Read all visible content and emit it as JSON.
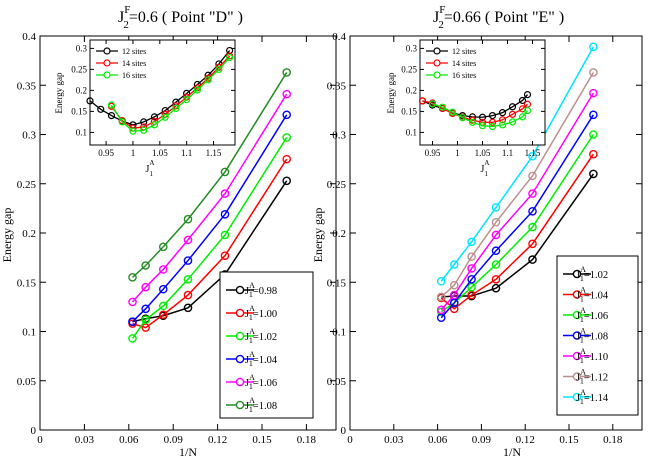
{
  "chart_data": [
    {
      "type": "line",
      "panel": "left",
      "title_main": "J",
      "title_sub": "2",
      "title_sup": "F",
      "title_rest": "=0.6    ( Point  \"D\" )",
      "xlabel": "1/N",
      "ylabel": "Energy gap",
      "xlim": [
        0,
        0.2
      ],
      "ylim": [
        0,
        0.4
      ],
      "xticks": [
        "0",
        "0.03",
        "0.06",
        "0.09",
        "0.12",
        "0.15",
        "0.18"
      ],
      "yticks": [
        "0",
        "0.05",
        "0.1",
        "0.15",
        "0.2",
        "0.25",
        "0.3",
        "0.35",
        "0.4"
      ],
      "x": [
        0.0625,
        0.0714,
        0.0833,
        0.1,
        0.125,
        0.1667
      ],
      "legend_prefix": "J",
      "legend_sub": "1",
      "legend_sup": "A",
      "series": [
        {
          "name": "=0.98",
          "color": "#000000",
          "values": [
            0.11,
            0.113,
            0.116,
            0.124,
            0.158,
            0.253
          ]
        },
        {
          "name": "=1.00",
          "color": "#ff0000",
          "values": [
            0.108,
            0.104,
            0.117,
            0.137,
            0.177,
            0.275
          ]
        },
        {
          "name": "=1.02",
          "color": "#00ee00",
          "values": [
            0.093,
            0.112,
            0.126,
            0.153,
            0.198,
            0.297
          ]
        },
        {
          "name": "=1.04",
          "color": "#0000ff",
          "values": [
            0.11,
            0.123,
            0.143,
            0.172,
            0.219,
            0.32
          ]
        },
        {
          "name": "=1.06",
          "color": "#ff00ff",
          "values": [
            0.13,
            0.145,
            0.163,
            0.193,
            0.24,
            0.341
          ]
        },
        {
          "name": "=1.08",
          "color": "#228b22",
          "values": [
            0.155,
            0.167,
            0.186,
            0.214,
            0.262,
            0.363
          ]
        }
      ],
      "inset": {
        "xlabel_main": "J",
        "xlabel_sub": "1",
        "xlabel_sup": "A",
        "ylabel": "Energy gap",
        "xlim": [
          0.92,
          1.19
        ],
        "ylim": [
          0.07,
          0.32
        ],
        "xticks": [
          "0.95",
          "1",
          "1.05",
          "1.1",
          "1.15"
        ],
        "yticks": [
          "0.1",
          "0.15",
          "0.2",
          "0.25",
          "0.3"
        ],
        "series": [
          {
            "name": "12 sites",
            "color": "#000000",
            "x": [
              0.92,
              0.94,
              0.96,
              0.98,
              1.0,
              1.02,
              1.04,
              1.06,
              1.08,
              1.1,
              1.12,
              1.14,
              1.16,
              1.18
            ],
            "values": [
              0.175,
              0.155,
              0.14,
              0.127,
              0.118,
              0.125,
              0.137,
              0.152,
              0.172,
              0.193,
              0.214,
              0.236,
              0.263,
              0.295
            ]
          },
          {
            "name": "14 sites",
            "color": "#ff0000",
            "x": [
              0.96,
              0.98,
              1.0,
              1.02,
              1.04,
              1.06,
              1.08,
              1.1,
              1.12,
              1.14,
              1.16,
              1.18
            ],
            "values": [
              0.162,
              0.128,
              0.11,
              0.113,
              0.126,
              0.143,
              0.163,
              0.184,
              0.206,
              0.229,
              0.255,
              0.282
            ]
          },
          {
            "name": "16 sites",
            "color": "#00ee00",
            "x": [
              0.96,
              0.98,
              1.0,
              1.02,
              1.04,
              1.06,
              1.08,
              1.1,
              1.12,
              1.14,
              1.16,
              1.18
            ],
            "values": [
              0.165,
              0.125,
              0.103,
              0.105,
              0.118,
              0.136,
              0.157,
              0.178,
              0.201,
              0.225,
              0.25,
              0.278
            ]
          }
        ]
      }
    },
    {
      "type": "line",
      "panel": "right",
      "title_main": "J",
      "title_sub": "2",
      "title_sup": "F",
      "title_rest": "=0.66    ( Point  \"E\" )",
      "xlabel": "1/N",
      "ylabel": "Energy gap",
      "xlim": [
        0,
        0.2
      ],
      "ylim": [
        0,
        0.4
      ],
      "xticks": [
        "0",
        "0.03",
        "0.06",
        "0.09",
        "0.12",
        "0.15",
        "0.18"
      ],
      "yticks": [
        "0",
        "0.05",
        "0.1",
        "0.15",
        "0.2",
        "0.25",
        "0.3",
        "0.35",
        "0.4"
      ],
      "x": [
        0.0625,
        0.0714,
        0.0833,
        0.1,
        0.125,
        0.1667
      ],
      "legend_prefix": "J",
      "legend_sub": "1",
      "legend_sup": "A",
      "series": [
        {
          "name": "=1.02",
          "color": "#000000",
          "values": [
            0.135,
            0.136,
            0.136,
            0.144,
            0.173,
            0.26
          ]
        },
        {
          "name": "=1.04",
          "color": "#ff0000",
          "values": [
            0.134,
            0.123,
            0.137,
            0.153,
            0.189,
            0.28
          ]
        },
        {
          "name": "=1.06",
          "color": "#00ee00",
          "values": [
            0.12,
            0.129,
            0.145,
            0.168,
            0.206,
            0.3
          ]
        },
        {
          "name": "=1.08",
          "color": "#0000ff",
          "values": [
            0.114,
            0.129,
            0.153,
            0.182,
            0.222,
            0.32
          ]
        },
        {
          "name": "=1.10",
          "color": "#ff00ff",
          "values": [
            0.122,
            0.137,
            0.164,
            0.198,
            0.24,
            0.342
          ]
        },
        {
          "name": "=1.12",
          "color": "#bc8f8f",
          "values": [
            0.135,
            0.147,
            0.176,
            0.211,
            0.258,
            0.363
          ]
        },
        {
          "name": "=1.14",
          "color": "#00e5ff",
          "values": [
            0.151,
            0.168,
            0.191,
            0.226,
            0.278,
            0.389
          ]
        }
      ],
      "inset": {
        "xlabel_main": "J",
        "xlabel_sub": "1",
        "xlabel_sup": "A",
        "ylabel": "Energy gap",
        "xlim": [
          0.925,
          1.175
        ],
        "ylim": [
          0.07,
          0.32
        ],
        "xticks": [
          "0.95",
          "1",
          "1.05",
          "1.1",
          "1.15"
        ],
        "yticks": [
          "0.1",
          "0.15",
          "0.2",
          "0.25",
          "0.3"
        ],
        "series": [
          {
            "name": "12 sites",
            "color": "#000000",
            "x": [
              0.93,
              0.95,
              0.97,
              0.99,
              1.01,
              1.03,
              1.05,
              1.07,
              1.09,
              1.11,
              1.13,
              1.14
            ],
            "values": [
              0.175,
              0.165,
              0.157,
              0.147,
              0.14,
              0.137,
              0.136,
              0.14,
              0.147,
              0.161,
              0.176,
              0.19
            ]
          },
          {
            "name": "14 sites",
            "color": "#ff0000",
            "x": [
              0.93,
              0.95,
              0.97,
              0.99,
              1.01,
              1.03,
              1.05,
              1.07,
              1.09,
              1.11,
              1.13,
              1.14
            ],
            "values": [
              0.175,
              0.17,
              0.157,
              0.145,
              0.136,
              0.129,
              0.124,
              0.124,
              0.13,
              0.143,
              0.156,
              0.167
            ]
          },
          {
            "name": "16 sites",
            "color": "#00ee00",
            "x": [
              0.95,
              0.97,
              0.99,
              1.01,
              1.03,
              1.05,
              1.07,
              1.09,
              1.11,
              1.13,
              1.14
            ],
            "values": [
              0.168,
              0.16,
              0.148,
              0.135,
              0.124,
              0.116,
              0.114,
              0.118,
              0.125,
              0.137,
              0.152
            ]
          }
        ]
      }
    }
  ]
}
